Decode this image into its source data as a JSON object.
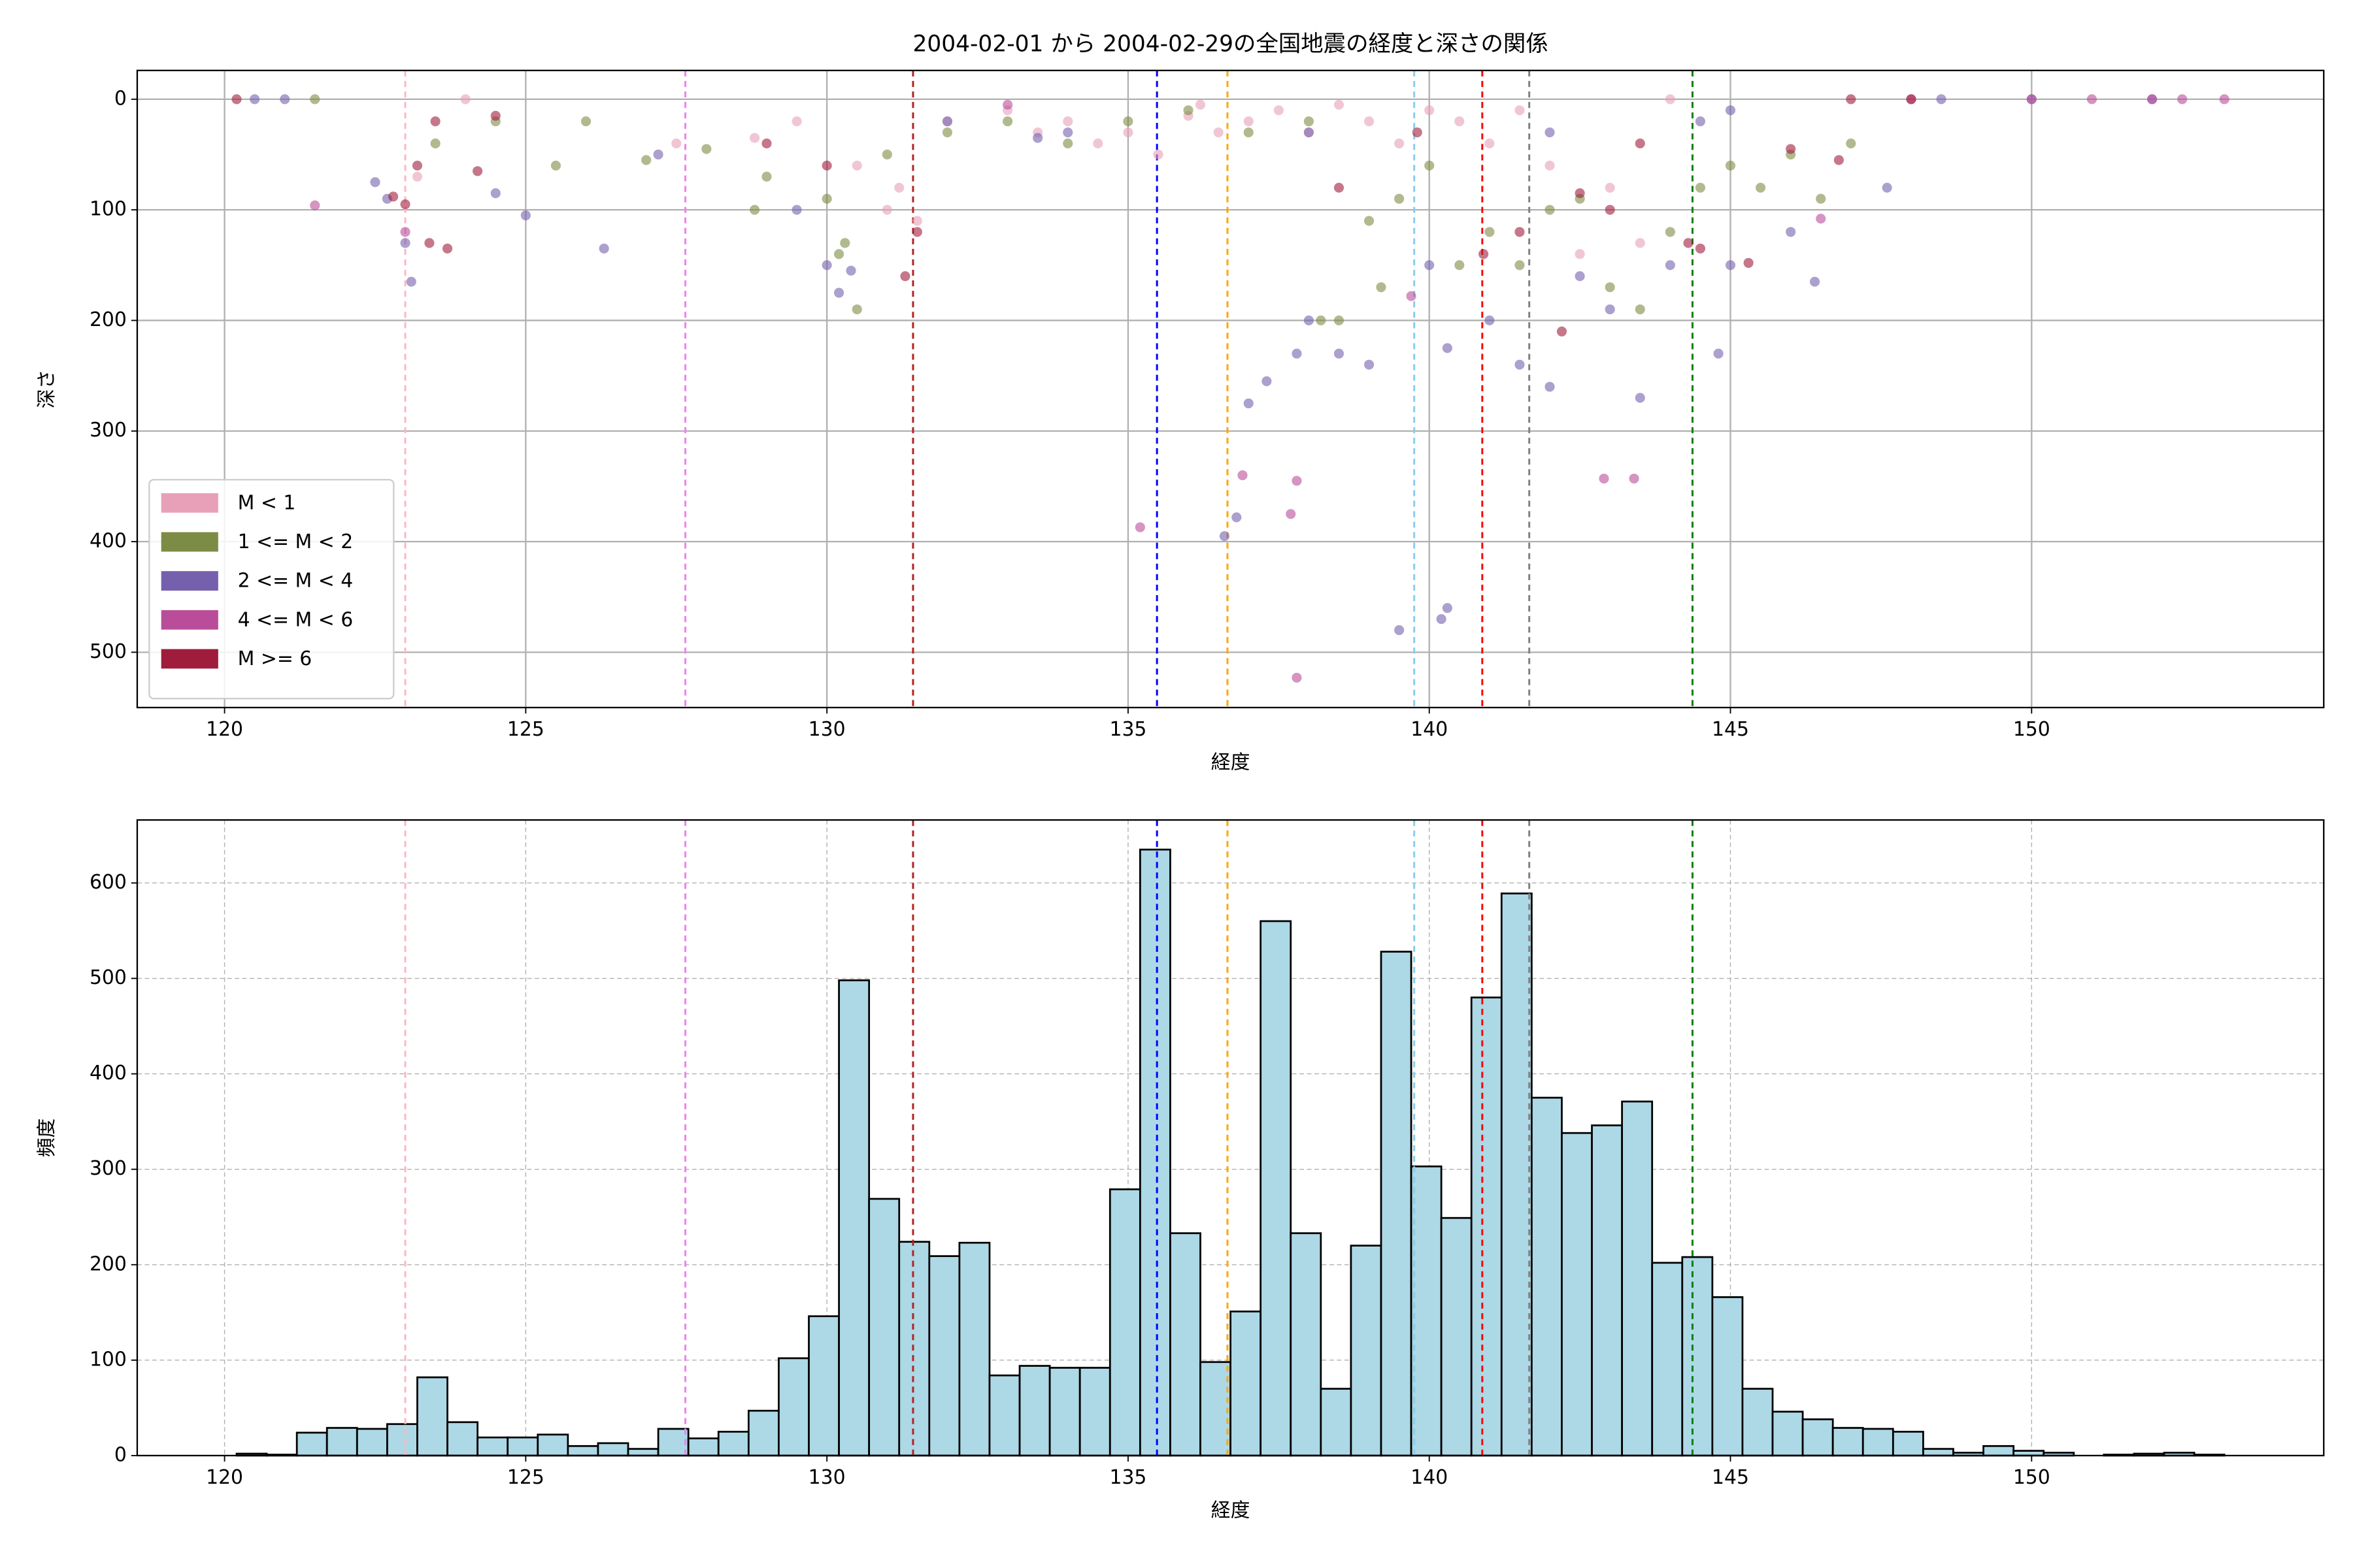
{
  "chart_data": [
    {
      "type": "scatter",
      "title": "2004-02-01 から 2004-02-29の全国地震の経度と深さの関係",
      "x_label": "経度",
      "y_label": "深さ",
      "xlim": [
        118.55,
        154.85
      ],
      "xticks": [
        120,
        125,
        130,
        135,
        140,
        145,
        150
      ],
      "ylim": [
        -26,
        550
      ],
      "y_inverted": true,
      "yticks": [
        0,
        100,
        200,
        300,
        400,
        500
      ],
      "grid": true,
      "grid_style": "solid",
      "legend_position": "lower-left",
      "point_opacity": 0.6,
      "series": [
        {
          "name": "M < 1",
          "color": "#e8a0b8",
          "x": [
            127.5,
            128.8,
            129.5,
            130.5,
            131,
            131.5,
            131.2,
            132,
            133,
            134,
            135,
            136,
            136.5,
            137,
            137.5,
            138,
            138.5,
            139,
            139.5,
            140,
            140.5,
            141,
            142,
            143,
            143.5,
            142.5,
            123.2,
            124,
            135.5,
            136.2,
            134.5,
            133.5,
            141.5,
            144
          ],
          "values": [
            40,
            35,
            20,
            60,
            100,
            110,
            80,
            20,
            10,
            20,
            30,
            15,
            30,
            20,
            10,
            30,
            5,
            20,
            40,
            10,
            20,
            40,
            60,
            80,
            130,
            140,
            70,
            0,
            50,
            5,
            40,
            30,
            10,
            0
          ]
        },
        {
          "name": "1 <= M < 2",
          "color": "#7d8c45",
          "x": [
            123.5,
            124.5,
            125.5,
            127,
            128,
            129,
            130,
            130.3,
            130.5,
            130.2,
            131,
            132,
            133,
            134,
            135,
            136,
            137,
            138,
            138.5,
            139,
            139.5,
            140,
            140.5,
            141,
            141.5,
            142,
            142.5,
            143,
            143.5,
            144,
            144.5,
            145,
            145.5,
            146,
            146.5,
            147,
            138.2,
            139.2,
            128.8,
            126,
            121.5
          ],
          "values": [
            40,
            20,
            60,
            55,
            45,
            70,
            90,
            130,
            190,
            140,
            50,
            30,
            20,
            40,
            20,
            10,
            30,
            20,
            200,
            110,
            90,
            60,
            150,
            120,
            150,
            100,
            90,
            170,
            190,
            120,
            80,
            60,
            80,
            50,
            90,
            40,
            200,
            170,
            100,
            20,
            0
          ]
        },
        {
          "name": "2 <= M < 4",
          "color": "#7560ad",
          "x": [
            120.5,
            122.5,
            122.7,
            123,
            123.1,
            124.5,
            125,
            126.3,
            127.2,
            129.5,
            130,
            130.2,
            130.4,
            132,
            134,
            136.6,
            136.8,
            137,
            137.3,
            137.8,
            138,
            138.5,
            139,
            139.5,
            140,
            140.2,
            140.3,
            140.3,
            141,
            141.5,
            142,
            142.5,
            143.5,
            143,
            144,
            144.8,
            145,
            146,
            146.4,
            147.6,
            148.5,
            150,
            152,
            121,
            133.5,
            138,
            142,
            144.5,
            145
          ],
          "values": [
            0,
            75,
            90,
            130,
            165,
            85,
            105,
            135,
            50,
            100,
            150,
            175,
            155,
            20,
            30,
            395,
            378,
            275,
            255,
            230,
            200,
            230,
            240,
            480,
            150,
            470,
            460,
            225,
            200,
            240,
            260,
            160,
            270,
            190,
            150,
            230,
            150,
            120,
            165,
            80,
            0,
            0,
            0,
            0,
            35,
            30,
            30,
            20,
            10
          ]
        },
        {
          "name": "4 <= M < 6",
          "color": "#b94d9a",
          "x": [
            121.5,
            135.2,
            136.9,
            137.7,
            137.8,
            137.8,
            139.7,
            142.9,
            143.4,
            146.5,
            151,
            152,
            152.5,
            153.2,
            150,
            148,
            123,
            133
          ],
          "values": [
            96,
            387,
            340,
            375,
            523,
            345,
            178,
            343,
            343,
            108,
            0,
            0,
            0,
            0,
            0,
            0,
            120,
            5
          ]
        },
        {
          "name": "M >= 6",
          "color": "#a01c3c",
          "x": [
            120.2,
            122.8,
            123,
            123.2,
            123.4,
            123.7,
            124.2,
            123.5,
            124.5,
            129,
            130,
            131.3,
            131.5,
            138.5,
            139.8,
            140.9,
            141.5,
            142.2,
            142.5,
            143,
            143.5,
            144.3,
            144.5,
            145.3,
            146,
            146.8,
            147,
            148
          ],
          "values": [
            0,
            88,
            95,
            60,
            130,
            135,
            65,
            20,
            15,
            40,
            60,
            160,
            120,
            80,
            30,
            140,
            120,
            210,
            85,
            100,
            40,
            130,
            135,
            148,
            45,
            55,
            0,
            0
          ]
        }
      ],
      "vlines": [
        {
          "x": 123.0,
          "color": "#ffb6c1"
        },
        {
          "x": 127.65,
          "color": "#ee82ee"
        },
        {
          "x": 131.43,
          "color": "#b22222"
        },
        {
          "x": 135.48,
          "color": "#0000ff"
        },
        {
          "x": 136.65,
          "color": "#ffa500"
        },
        {
          "x": 139.75,
          "color": "#87ceeb"
        },
        {
          "x": 140.88,
          "color": "#ff0000"
        },
        {
          "x": 141.66,
          "color": "#808080"
        },
        {
          "x": 144.37,
          "color": "#008000"
        }
      ]
    },
    {
      "type": "histogram",
      "x_label": "経度",
      "y_label": "頻度",
      "xlim": [
        118.55,
        154.85
      ],
      "xticks": [
        120,
        125,
        130,
        135,
        140,
        145,
        150
      ],
      "ylim": [
        0,
        666
      ],
      "yticks": [
        0,
        100,
        200,
        300,
        400,
        500,
        600
      ],
      "grid": true,
      "grid_style": "dashed",
      "color": "#add8e6",
      "edgecolor": "#000000",
      "bins": [
        120.2,
        120.7,
        121.2,
        121.7,
        122.2,
        122.7,
        123.2,
        123.7,
        124.2,
        124.7,
        125.2,
        125.7,
        126.2,
        126.7,
        127.2,
        127.7,
        128.2,
        128.7,
        129.2,
        129.7,
        130.2,
        130.7,
        131.2,
        131.7,
        132.2,
        132.7,
        133.2,
        133.7,
        134.2,
        134.7,
        135.2,
        135.7,
        136.2,
        136.7,
        137.2,
        137.7,
        138.2,
        138.7,
        139.2,
        139.7,
        140.2,
        140.7,
        141.2,
        141.7,
        142.2,
        142.7,
        143.2,
        143.7,
        144.2,
        144.7,
        145.2,
        145.7,
        146.2,
        146.7,
        147.2,
        147.7,
        148.2,
        148.7,
        149.2,
        149.7,
        150.2,
        150.7,
        151.2,
        151.7,
        152.2,
        152.7,
        153.2
      ],
      "values": [
        2,
        1,
        24,
        29,
        28,
        33,
        82,
        35,
        19,
        19,
        22,
        10,
        13,
        7,
        28,
        18,
        25,
        47,
        102,
        146,
        498,
        269,
        224,
        209,
        223,
        84,
        94,
        92,
        92,
        279,
        635,
        233,
        98,
        151,
        560,
        233,
        70,
        220,
        528,
        303,
        249,
        480,
        589,
        375,
        338,
        346,
        371,
        202,
        208,
        166,
        70,
        46,
        38,
        29,
        28,
        25,
        7,
        3,
        10,
        5,
        3,
        0,
        1,
        2,
        3,
        1
      ],
      "vlines": [
        {
          "x": 123.0,
          "color": "#ffb6c1"
        },
        {
          "x": 127.65,
          "color": "#ee82ee"
        },
        {
          "x": 131.43,
          "color": "#b22222"
        },
        {
          "x": 135.48,
          "color": "#0000ff"
        },
        {
          "x": 136.65,
          "color": "#ffa500"
        },
        {
          "x": 139.75,
          "color": "#87ceeb"
        },
        {
          "x": 140.88,
          "color": "#ff0000"
        },
        {
          "x": 141.66,
          "color": "#808080"
        },
        {
          "x": 144.37,
          "color": "#008000"
        }
      ]
    }
  ]
}
